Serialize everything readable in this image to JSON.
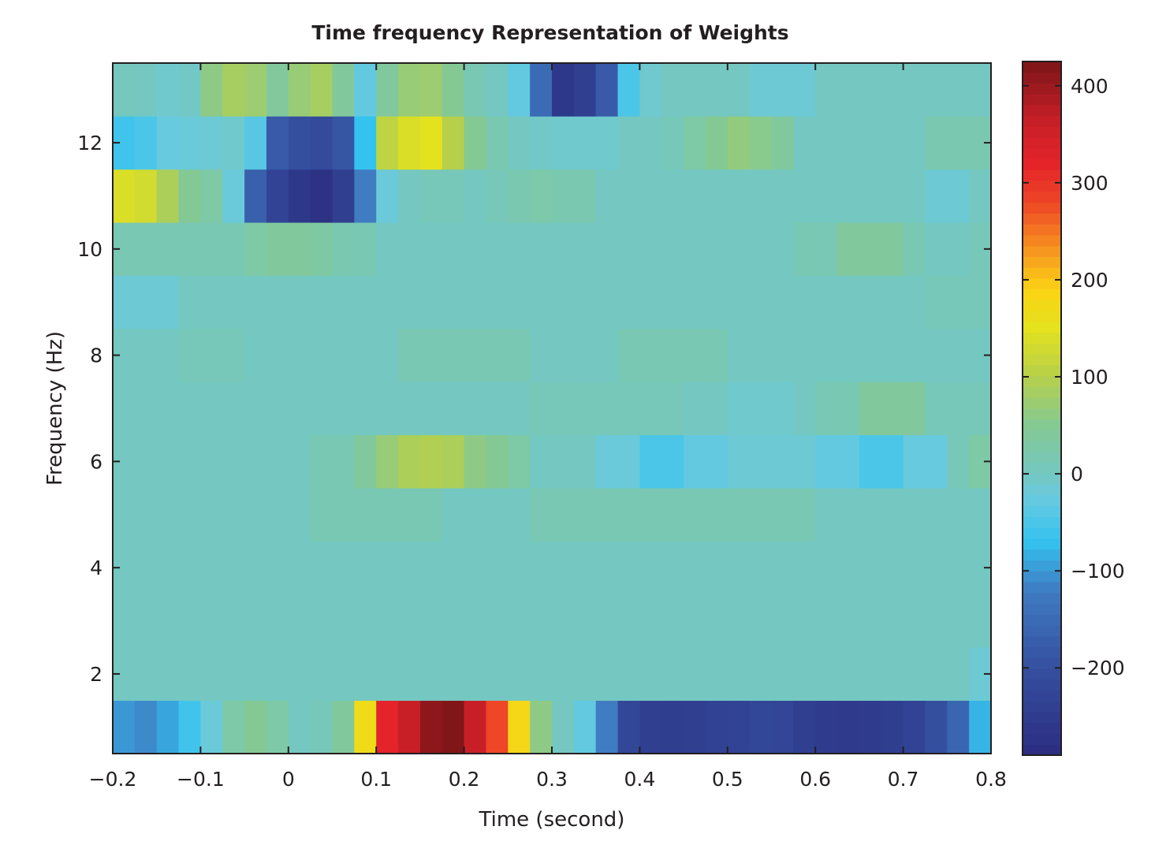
{
  "chart_data": {
    "type": "heatmap",
    "title": "Time frequency Representation of Weights",
    "xlabel": "Time (second)",
    "ylabel": "Frequency (Hz)",
    "xlim": [
      -0.2,
      0.8
    ],
    "ylim": [
      0.5,
      13.5
    ],
    "x_ticks": [
      "-0.2",
      "-0.1",
      "0",
      "0.1",
      "0.2",
      "0.3",
      "0.4",
      "0.5",
      "0.6",
      "0.7",
      "0.8"
    ],
    "x_tick_values": [
      -0.2,
      -0.1,
      0,
      0.1,
      0.2,
      0.3,
      0.4,
      0.5,
      0.6,
      0.7,
      0.8
    ],
    "y_ticks": [
      "2",
      "4",
      "6",
      "8",
      "10",
      "12"
    ],
    "y_tick_values": [
      2,
      4,
      6,
      8,
      10,
      12
    ],
    "time_step": 0.025,
    "time_start": -0.2,
    "frequencies": [
      1,
      2,
      3,
      4,
      5,
      6,
      7,
      8,
      9,
      10,
      11,
      12,
      13
    ],
    "values": [
      [
        -100,
        -110,
        -90,
        -60,
        -20,
        30,
        50,
        30,
        0,
        10,
        40,
        170,
        320,
        360,
        410,
        420,
        360,
        280,
        180,
        60,
        0,
        -30,
        -120,
        -220,
        -240,
        -245,
        -240,
        -235,
        -230,
        -220,
        -225,
        -240,
        -250,
        -255,
        -250,
        -245,
        -230,
        -200,
        -160,
        -80
      ],
      [
        0,
        0,
        0,
        0,
        0,
        0,
        0,
        0,
        0,
        0,
        0,
        0,
        0,
        0,
        0,
        0,
        0,
        0,
        0,
        0,
        0,
        0,
        0,
        0,
        0,
        0,
        0,
        0,
        0,
        0,
        0,
        0,
        0,
        0,
        0,
        0,
        0,
        0,
        0,
        -15
      ],
      [
        0,
        0,
        0,
        0,
        0,
        0,
        0,
        0,
        0,
        0,
        0,
        0,
        0,
        0,
        0,
        0,
        0,
        0,
        0,
        0,
        0,
        0,
        0,
        0,
        0,
        0,
        0,
        0,
        0,
        0,
        0,
        0,
        0,
        0,
        0,
        0,
        0,
        0,
        0,
        0
      ],
      [
        0,
        0,
        0,
        0,
        0,
        0,
        0,
        0,
        0,
        0,
        0,
        0,
        0,
        0,
        0,
        0,
        0,
        0,
        0,
        0,
        0,
        0,
        0,
        0,
        0,
        0,
        0,
        0,
        0,
        0,
        0,
        0,
        0,
        0,
        0,
        0,
        0,
        0,
        0,
        0
      ],
      [
        0,
        0,
        0,
        0,
        0,
        0,
        0,
        0,
        0,
        15,
        15,
        15,
        15,
        15,
        15,
        0,
        0,
        0,
        0,
        15,
        15,
        15,
        15,
        15,
        15,
        15,
        15,
        15,
        15,
        15,
        15,
        15,
        0,
        0,
        0,
        0,
        0,
        0,
        0,
        0
      ],
      [
        0,
        0,
        0,
        0,
        0,
        0,
        0,
        0,
        0,
        15,
        15,
        40,
        70,
        90,
        95,
        90,
        60,
        50,
        30,
        0,
        0,
        0,
        -20,
        -20,
        -50,
        -50,
        -30,
        -30,
        -15,
        -15,
        -15,
        -15,
        -30,
        -30,
        -50,
        -50,
        -25,
        -25,
        10,
        30
      ],
      [
        0,
        0,
        0,
        0,
        0,
        0,
        0,
        0,
        0,
        0,
        0,
        0,
        0,
        0,
        0,
        0,
        0,
        0,
        0,
        10,
        10,
        10,
        10,
        10,
        10,
        10,
        0,
        0,
        -10,
        -10,
        -10,
        0,
        15,
        15,
        40,
        40,
        40,
        10,
        10,
        10
      ],
      [
        0,
        0,
        0,
        10,
        10,
        10,
        0,
        0,
        0,
        0,
        0,
        0,
        0,
        15,
        15,
        15,
        15,
        15,
        15,
        0,
        0,
        0,
        0,
        15,
        15,
        15,
        15,
        15,
        0,
        0,
        0,
        0,
        0,
        0,
        0,
        0,
        0,
        0,
        0,
        0
      ],
      [
        -15,
        -15,
        -15,
        0,
        0,
        0,
        0,
        0,
        0,
        0,
        0,
        0,
        0,
        0,
        0,
        0,
        0,
        0,
        0,
        0,
        0,
        0,
        0,
        0,
        0,
        0,
        0,
        0,
        0,
        0,
        0,
        0,
        0,
        0,
        0,
        0,
        0,
        10,
        10,
        10
      ],
      [
        15,
        15,
        15,
        15,
        15,
        15,
        30,
        40,
        40,
        35,
        20,
        15,
        0,
        0,
        0,
        0,
        0,
        0,
        0,
        0,
        0,
        0,
        0,
        0,
        0,
        0,
        0,
        0,
        0,
        0,
        0,
        15,
        15,
        40,
        40,
        40,
        15,
        0,
        0,
        10
      ],
      [
        140,
        130,
        90,
        50,
        30,
        -20,
        -170,
        -230,
        -260,
        -275,
        -240,
        -120,
        -20,
        0,
        10,
        10,
        0,
        10,
        20,
        25,
        20,
        20,
        0,
        0,
        0,
        0,
        0,
        0,
        0,
        0,
        0,
        0,
        0,
        0,
        0,
        0,
        0,
        -15,
        -15,
        0
      ],
      [
        -60,
        -50,
        -25,
        -20,
        -15,
        -10,
        -40,
        -180,
        -200,
        -210,
        -190,
        -70,
        110,
        140,
        150,
        100,
        50,
        20,
        0,
        -5,
        -10,
        -10,
        -10,
        0,
        0,
        10,
        30,
        50,
        65,
        55,
        40,
        0,
        0,
        0,
        0,
        0,
        0,
        20,
        20,
        20
      ],
      [
        5,
        0,
        -10,
        -5,
        60,
        85,
        75,
        40,
        70,
        85,
        40,
        -30,
        40,
        70,
        75,
        50,
        15,
        0,
        -30,
        -150,
        -260,
        -240,
        -180,
        -50,
        -10,
        0,
        0,
        0,
        0,
        -15,
        -15,
        -15,
        0,
        0,
        0,
        0,
        0,
        0,
        0,
        0
      ]
    ],
    "colorbar": {
      "range": [
        -290,
        425
      ],
      "ticks": [
        "400",
        "300",
        "200",
        "100",
        "0",
        "−100",
        "−200"
      ],
      "tick_values": [
        400,
        300,
        200,
        100,
        0,
        -100,
        -200
      ],
      "colormap_stops": [
        [
          -290,
          "#2b2c80"
        ],
        [
          -200,
          "#354f9f"
        ],
        [
          -120,
          "#3f7cc2"
        ],
        [
          -70,
          "#34c2ef"
        ],
        [
          -25,
          "#68cadf"
        ],
        [
          0,
          "#74c8c1"
        ],
        [
          50,
          "#84c994"
        ],
        [
          100,
          "#b6d04b"
        ],
        [
          150,
          "#e4e21e"
        ],
        [
          190,
          "#fbd314"
        ],
        [
          230,
          "#f6961f"
        ],
        [
          280,
          "#ee4626"
        ],
        [
          320,
          "#e5232a"
        ],
        [
          370,
          "#c11e26"
        ],
        [
          425,
          "#7b1517"
        ]
      ]
    }
  }
}
